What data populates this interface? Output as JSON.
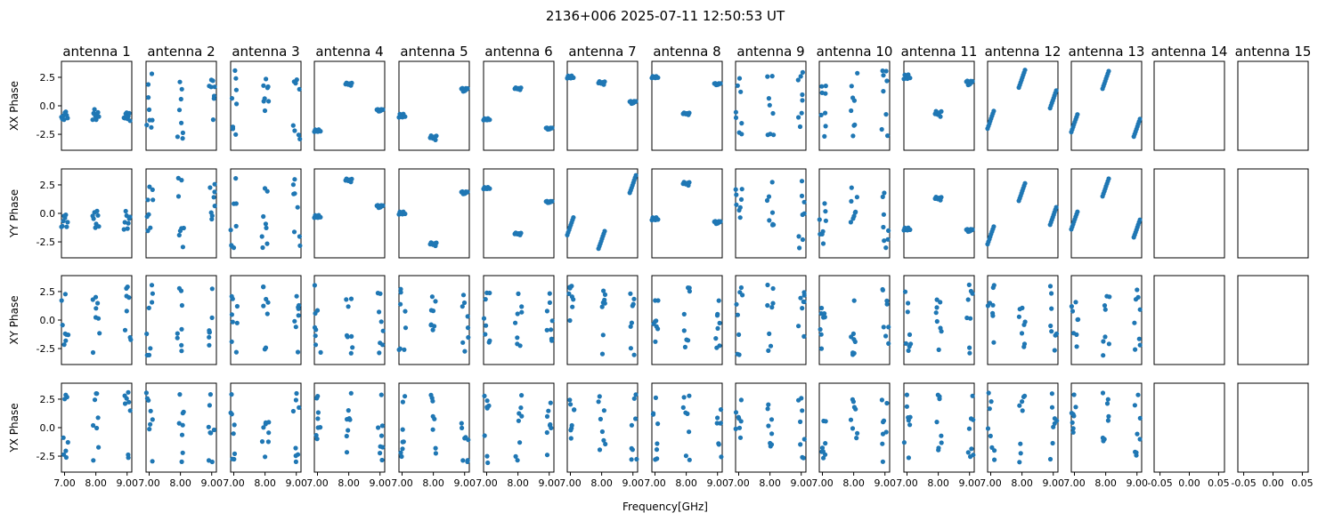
{
  "chart_data": {
    "type": "scatter",
    "title": "2136+006 2025-07-11 12:50:53 UT",
    "xlabel": "Frequency[GHz]",
    "row_labels": [
      "XX Phase",
      "YY Phase",
      "XY Phase",
      "YX Phase"
    ],
    "antennas": [
      "antenna 1",
      "antenna 2",
      "antenna 3",
      "antenna 4",
      "antenna 5",
      "antenna 6",
      "antenna 7",
      "antenna 8",
      "antenna 9",
      "antenna 10",
      "antenna 11",
      "antenna 12",
      "antenna 13",
      "antenna 14",
      "antenna 15"
    ],
    "x_ticks": [
      "7.00",
      "8.00",
      "9.00"
    ],
    "empty_x_ticks": [
      "-0.05",
      "0.00",
      "0.05"
    ],
    "y_ticks": [
      "2.5",
      "0.0",
      "-2.5"
    ],
    "ylim": [
      -3.9,
      3.9
    ],
    "xlim": [
      6.9,
      9.15
    ],
    "empty_xlim": [
      -0.06,
      0.06
    ],
    "marker_color": "#1f77b4",
    "panels": [
      [
        {
          "type": "flat",
          "y": [
            -1.0,
            -1.05,
            -0.8,
            -1.2,
            -0.6,
            -0.4,
            -0.95,
            -1.1,
            -0.7,
            -0.5
          ]
        },
        {
          "type": "scatter",
          "seed": 11
        },
        {
          "type": "scatter",
          "seed": 12
        },
        {
          "type": "groups",
          "y": [
            -2.2,
            1.9,
            -0.4
          ],
          "spread": 0.25
        },
        {
          "type": "groups",
          "y": [
            -0.9,
            -2.8,
            1.4
          ],
          "spread": 0.4
        },
        {
          "type": "groups",
          "y": [
            -1.2,
            1.5,
            -2.0
          ],
          "spread": 0.2
        },
        {
          "type": "groups",
          "y": [
            2.5,
            2.0,
            0.3
          ],
          "spread": 0.3
        },
        {
          "type": "groups",
          "y": [
            2.5,
            -0.7,
            1.9
          ],
          "spread": 0.2
        },
        {
          "type": "scatter",
          "seed": 13
        },
        {
          "type": "scatter",
          "seed": 14
        },
        {
          "type": "groups",
          "y": [
            2.5,
            -0.7,
            2.0
          ],
          "spread": 0.5
        },
        {
          "type": "ramp",
          "a": -1.2,
          "b": 2.4,
          "c": 0.6
        },
        {
          "type": "ramp",
          "a": -1.5,
          "b": 2.3,
          "c": -1.9
        },
        {
          "type": "empty"
        },
        {
          "type": "empty"
        }
      ],
      [
        {
          "type": "flat",
          "y": [
            -1.2,
            -1.0,
            -0.6,
            -0.2,
            -0.4,
            0.0,
            -1.3,
            -0.8,
            0.2,
            -0.1
          ]
        },
        {
          "type": "scatter",
          "seed": 21
        },
        {
          "type": "scatter",
          "seed": 22
        },
        {
          "type": "groups",
          "y": [
            -0.3,
            2.9,
            0.6
          ],
          "spread": 0.3
        },
        {
          "type": "groups",
          "y": [
            0.0,
            -2.7,
            1.8
          ],
          "spread": 0.3
        },
        {
          "type": "groups",
          "y": [
            2.2,
            -1.8,
            1.0
          ],
          "spread": 0.2
        },
        {
          "type": "ramp",
          "a": -1.1,
          "b": -2.3,
          "c": 2.6
        },
        {
          "type": "groups",
          "y": [
            -0.5,
            2.6,
            -0.8
          ],
          "spread": 0.3
        },
        {
          "type": "scatter",
          "seed": 23
        },
        {
          "type": "scatter",
          "seed": 24
        },
        {
          "type": "groups",
          "y": [
            -1.4,
            1.3,
            -1.5
          ],
          "spread": 0.3
        },
        {
          "type": "ramp",
          "a": -1.9,
          "b": 1.9,
          "c": -0.2
        },
        {
          "type": "ramp",
          "a": -0.6,
          "b": 2.3,
          "c": -1.3
        },
        {
          "type": "empty"
        },
        {
          "type": "empty"
        }
      ],
      [
        {
          "type": "scatter",
          "seed": 31
        },
        {
          "type": "scatter",
          "seed": 32
        },
        {
          "type": "scatter",
          "seed": 33
        },
        {
          "type": "scatter",
          "seed": 34
        },
        {
          "type": "scatter",
          "seed": 35
        },
        {
          "type": "scatter",
          "seed": 36
        },
        {
          "type": "scatter",
          "seed": 37
        },
        {
          "type": "scatter",
          "seed": 38
        },
        {
          "type": "scatter",
          "seed": 39
        },
        {
          "type": "scatter",
          "seed": 40
        },
        {
          "type": "scatter",
          "seed": 41
        },
        {
          "type": "scatter",
          "seed": 42
        },
        {
          "type": "scatter",
          "seed": 43
        },
        {
          "type": "empty"
        },
        {
          "type": "empty"
        }
      ],
      [
        {
          "type": "scatter",
          "seed": 51
        },
        {
          "type": "scatter",
          "seed": 52
        },
        {
          "type": "scatter",
          "seed": 53
        },
        {
          "type": "scatter",
          "seed": 54
        },
        {
          "type": "scatter",
          "seed": 55
        },
        {
          "type": "scatter",
          "seed": 56
        },
        {
          "type": "scatter",
          "seed": 57
        },
        {
          "type": "scatter",
          "seed": 58
        },
        {
          "type": "scatter",
          "seed": 59
        },
        {
          "type": "scatter",
          "seed": 60
        },
        {
          "type": "scatter",
          "seed": 61
        },
        {
          "type": "scatter",
          "seed": 62
        },
        {
          "type": "scatter",
          "seed": 63
        },
        {
          "type": "empty"
        },
        {
          "type": "empty"
        }
      ]
    ]
  }
}
